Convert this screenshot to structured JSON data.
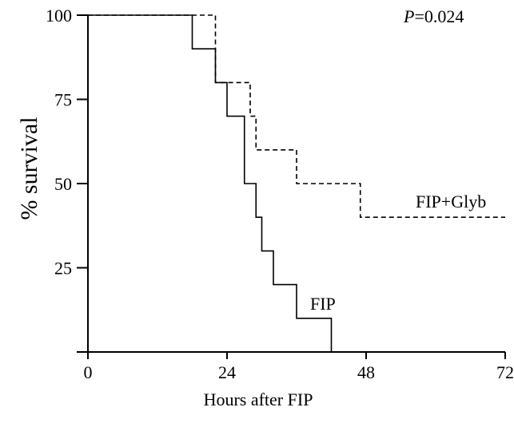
{
  "chart_data": {
    "type": "line",
    "subtype": "kaplan-meier step plot",
    "title": "",
    "xlabel": "Hours after FIP",
    "ylabel": "% survival",
    "xlim": [
      0,
      72
    ],
    "ylim": [
      0,
      100
    ],
    "xticks": [
      0,
      24,
      48,
      72
    ],
    "yticks": [
      25,
      50,
      75,
      100
    ],
    "annotation": {
      "italic": "P",
      "rest": "=0.024"
    },
    "series": [
      {
        "name": "FIP",
        "line_style": "solid",
        "color": "#000000",
        "x": [
          0,
          18,
          22,
          24,
          27,
          29,
          30,
          32,
          36,
          42
        ],
        "y": [
          100,
          90,
          80,
          70,
          50,
          40,
          30,
          20,
          10,
          0
        ]
      },
      {
        "name": "FIP+Glyb",
        "line_style": "dashed",
        "color": "#000000",
        "x": [
          0,
          22,
          28,
          29,
          36,
          47,
          72
        ],
        "y": [
          100,
          80,
          70,
          60,
          50,
          40,
          40
        ]
      }
    ]
  }
}
